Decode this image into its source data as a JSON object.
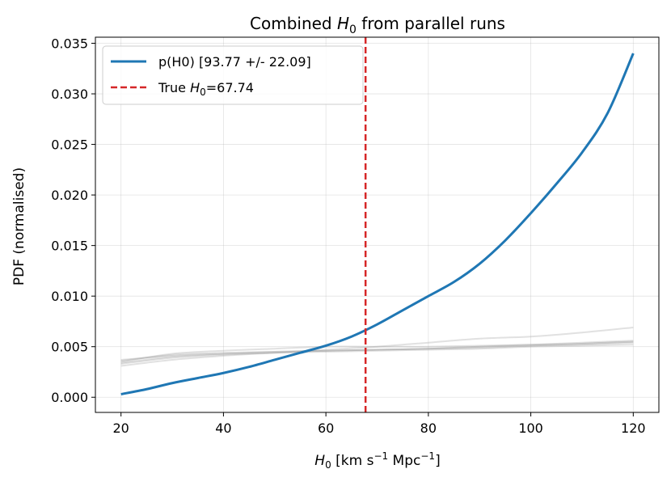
{
  "chart_data": {
    "type": "line",
    "title_prefix": "Combined ",
    "title_var": "H",
    "title_sub": "0",
    "title_suffix": " from parallel runs",
    "xlabel_var": "H",
    "xlabel_sub": "0",
    "xlabel_unit_a": " [km s",
    "xlabel_sup_a": "−1",
    "xlabel_unit_b": " Mpc",
    "xlabel_sup_b": "−1",
    "xlabel_unit_c": "]",
    "ylabel": "PDF (normalised)",
    "xlim": [
      15,
      125
    ],
    "ylim": [
      -0.0015,
      0.0356
    ],
    "xticks": [
      20,
      40,
      60,
      80,
      100,
      120
    ],
    "yticks": [
      0.0,
      0.005,
      0.01,
      0.015,
      0.02,
      0.025,
      0.03,
      0.035
    ],
    "ytick_labels": [
      "0.000",
      "0.005",
      "0.010",
      "0.015",
      "0.020",
      "0.025",
      "0.030",
      "0.035"
    ],
    "grid": true,
    "legend_position": "top-left",
    "true_h0": 67.74,
    "series": [
      {
        "name": "p(H0) [93.77 +/- 22.09]",
        "color": "#1f77b4",
        "x": [
          20,
          25,
          30,
          35,
          40,
          45,
          50,
          55,
          60,
          65,
          70,
          75,
          80,
          85,
          90,
          95,
          100,
          105,
          110,
          115,
          120
        ],
        "y": [
          0.0003,
          0.0008,
          0.0014,
          0.0019,
          0.0024,
          0.003,
          0.0037,
          0.0044,
          0.0051,
          0.006,
          0.0072,
          0.0086,
          0.01,
          0.0114,
          0.0132,
          0.0155,
          0.0182,
          0.0211,
          0.0242,
          0.0281,
          0.034
        ]
      }
    ],
    "true_label_prefix": "True ",
    "true_label_var": "H",
    "true_label_sub": "0",
    "true_label_suffix": "=67.74",
    "true_color": "#d62728",
    "run_color": "#a9a9a9",
    "runs": [
      {
        "x": [
          20,
          30,
          40,
          50,
          60,
          70,
          80,
          90,
          100,
          110,
          120
        ],
        "y": [
          0.0034,
          0.004,
          0.0043,
          0.0045,
          0.0046,
          0.0047,
          0.0048,
          0.005,
          0.0052,
          0.0054,
          0.0056
        ]
      },
      {
        "x": [
          20,
          30,
          40,
          50,
          60,
          70,
          80,
          90,
          100,
          110,
          120
        ],
        "y": [
          0.0036,
          0.0042,
          0.0044,
          0.0045,
          0.0046,
          0.0047,
          0.0048,
          0.0049,
          0.0051,
          0.0053,
          0.0055
        ]
      },
      {
        "x": [
          20,
          30,
          40,
          50,
          60,
          70,
          80,
          90,
          100,
          110,
          120
        ],
        "y": [
          0.0033,
          0.0039,
          0.0042,
          0.0044,
          0.0046,
          0.0047,
          0.0048,
          0.005,
          0.0051,
          0.0052,
          0.0054
        ]
      },
      {
        "x": [
          20,
          30,
          40,
          50,
          60,
          70,
          80,
          90,
          100,
          110,
          120
        ],
        "y": [
          0.0031,
          0.0037,
          0.0041,
          0.0044,
          0.0047,
          0.005,
          0.0054,
          0.0058,
          0.006,
          0.0064,
          0.0069
        ]
      },
      {
        "x": [
          20,
          30,
          40,
          50,
          60,
          70,
          80,
          90,
          100,
          110,
          120
        ],
        "y": [
          0.0035,
          0.0043,
          0.0046,
          0.0048,
          0.005,
          0.005,
          0.005,
          0.0051,
          0.0052,
          0.0053,
          0.0055
        ]
      },
      {
        "x": [
          20,
          30,
          40,
          50,
          60,
          70,
          80,
          90,
          100,
          110,
          120
        ],
        "y": [
          0.0037,
          0.0041,
          0.0043,
          0.0044,
          0.0045,
          0.0046,
          0.0047,
          0.0048,
          0.005,
          0.0051,
          0.0052
        ]
      }
    ]
  }
}
